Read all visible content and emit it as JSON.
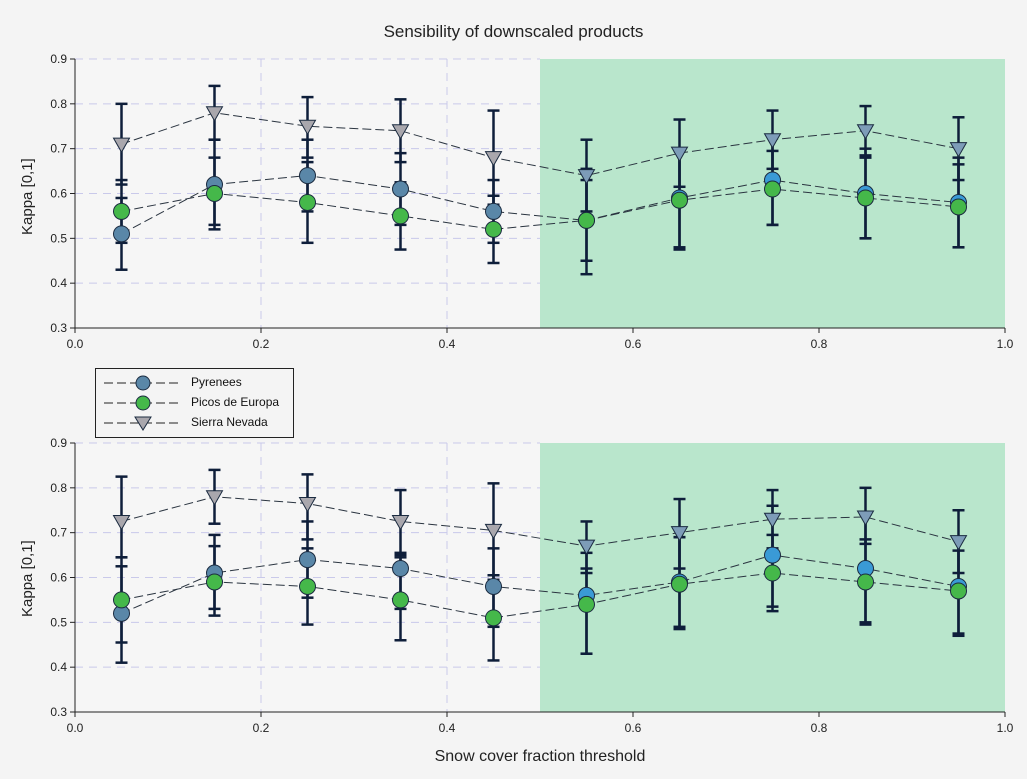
{
  "title": "Sensibility of downscaled products",
  "xlabel": "Snow cover fraction threshold",
  "ylabel": "Kappa [0,1]",
  "colors": {
    "background": "#f4f4f4",
    "shaded_region": "#b9e6cc",
    "pyrenees_marker": "#5a87a8",
    "picos_marker": "#45b84a",
    "sierra_marker": "#a9a7ad",
    "error_bar": "#0e1e3a",
    "grid": "#c9c9ea"
  },
  "legend": {
    "items": [
      "Pyrenees",
      "Picos de Europa",
      "Sierra Nevada"
    ]
  },
  "chart_data": [
    {
      "type": "line",
      "title": "Sensibility of downscaled products",
      "xlabel": "",
      "ylabel": "Kappa [0,1]",
      "xlim": [
        0.0,
        1.0
      ],
      "ylim": [
        0.3,
        0.9
      ],
      "xticks": [
        "0.0",
        "0.2",
        "0.4",
        "0.6",
        "0.8",
        "1.0"
      ],
      "yticks": [
        "0.3",
        "0.4",
        "0.5",
        "0.6",
        "0.7",
        "0.8",
        "0.9"
      ],
      "grid": true,
      "shaded_region_x": [
        0.5,
        1.0
      ],
      "x": [
        0.05,
        0.15,
        0.25,
        0.35,
        0.45,
        0.55,
        0.65,
        0.75,
        0.85,
        0.95
      ],
      "series": [
        {
          "name": "Pyrenees",
          "values": [
            0.51,
            0.62,
            0.64,
            0.61,
            0.56,
            0.54,
            0.59,
            0.63,
            0.6,
            0.58
          ],
          "error_low": [
            0.43,
            0.52,
            0.56,
            0.53,
            0.49,
            0.45,
            0.48,
            0.53,
            0.5,
            0.48
          ],
          "error_high": [
            0.59,
            0.72,
            0.72,
            0.69,
            0.63,
            0.63,
            0.7,
            0.73,
            0.7,
            0.68
          ]
        },
        {
          "name": "Picos de Europa",
          "values": [
            0.56,
            0.6,
            0.58,
            0.55,
            0.52,
            0.54,
            0.585,
            0.61,
            0.59,
            0.57
          ],
          "error_low": [
            0.49,
            0.53,
            0.49,
            0.475,
            0.445,
            0.42,
            0.475,
            0.53,
            0.5,
            0.48
          ],
          "error_high": [
            0.63,
            0.68,
            0.67,
            0.625,
            0.595,
            0.655,
            0.695,
            0.695,
            0.685,
            0.665
          ]
        },
        {
          "name": "Sierra Nevada",
          "values": [
            0.71,
            0.78,
            0.75,
            0.74,
            0.68,
            0.64,
            0.69,
            0.72,
            0.74,
            0.7
          ],
          "error_low": [
            0.62,
            0.72,
            0.68,
            0.67,
            0.575,
            0.56,
            0.615,
            0.655,
            0.68,
            0.63
          ],
          "error_high": [
            0.8,
            0.84,
            0.815,
            0.81,
            0.785,
            0.72,
            0.765,
            0.785,
            0.795,
            0.77
          ]
        }
      ]
    },
    {
      "type": "line",
      "title": "",
      "xlabel": "Snow cover fraction threshold",
      "ylabel": "Kappa [0,1]",
      "xlim": [
        0.0,
        1.0
      ],
      "ylim": [
        0.3,
        0.9
      ],
      "xticks": [
        "0.0",
        "0.2",
        "0.4",
        "0.6",
        "0.8",
        "1.0"
      ],
      "yticks": [
        "0.3",
        "0.4",
        "0.5",
        "0.6",
        "0.7",
        "0.8",
        "0.9"
      ],
      "grid": true,
      "shaded_region_x": [
        0.5,
        1.0
      ],
      "x": [
        0.05,
        0.15,
        0.25,
        0.35,
        0.45,
        0.55,
        0.65,
        0.75,
        0.85,
        0.95
      ],
      "series": [
        {
          "name": "Pyrenees",
          "values": [
            0.52,
            0.61,
            0.64,
            0.62,
            0.58,
            0.56,
            0.59,
            0.65,
            0.62,
            0.58
          ],
          "error_low": [
            0.41,
            0.53,
            0.555,
            0.53,
            0.49,
            0.43,
            0.49,
            0.535,
            0.5,
            0.47
          ],
          "error_high": [
            0.645,
            0.695,
            0.725,
            0.65,
            0.665,
            0.62,
            0.69,
            0.76,
            0.74,
            0.69
          ]
        },
        {
          "name": "Picos de Europa",
          "values": [
            0.55,
            0.59,
            0.58,
            0.55,
            0.51,
            0.54,
            0.585,
            0.61,
            0.59,
            0.57
          ],
          "error_low": [
            0.455,
            0.515,
            0.495,
            0.46,
            0.415,
            0.43,
            0.485,
            0.525,
            0.495,
            0.475
          ],
          "error_high": [
            0.625,
            0.67,
            0.665,
            0.645,
            0.605,
            0.655,
            0.69,
            0.695,
            0.685,
            0.66
          ]
        },
        {
          "name": "Sierra Nevada",
          "values": [
            0.725,
            0.78,
            0.765,
            0.725,
            0.705,
            0.67,
            0.7,
            0.73,
            0.735,
            0.68
          ],
          "error_low": [
            0.645,
            0.72,
            0.685,
            0.655,
            0.595,
            0.61,
            0.62,
            0.665,
            0.675,
            0.61
          ],
          "error_high": [
            0.825,
            0.84,
            0.83,
            0.795,
            0.81,
            0.725,
            0.775,
            0.795,
            0.8,
            0.75
          ]
        }
      ]
    }
  ]
}
